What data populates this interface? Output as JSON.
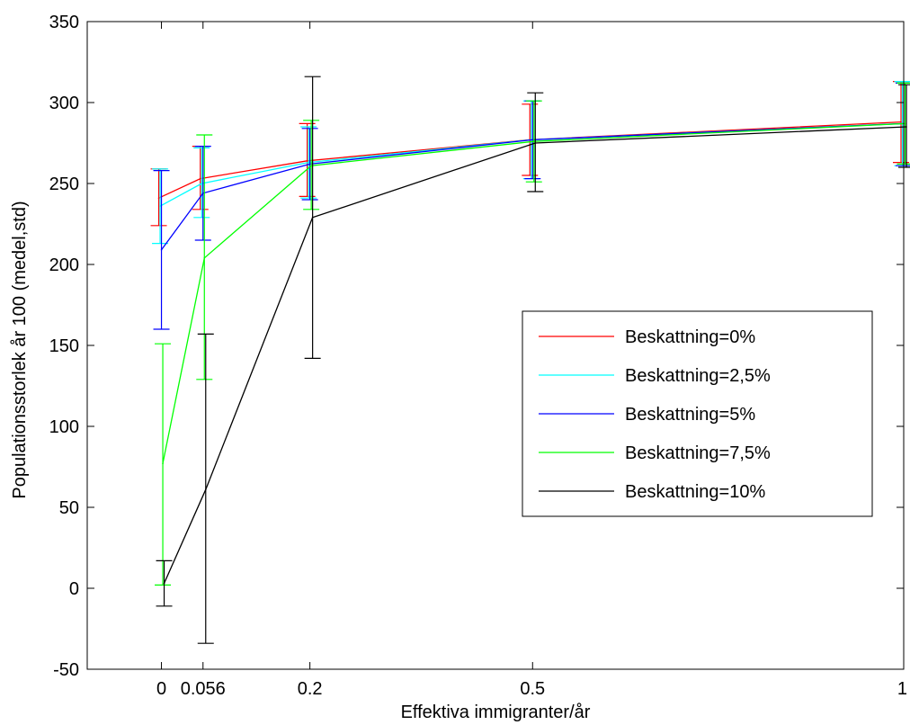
{
  "chart_data": {
    "type": "line",
    "title": "",
    "xlabel": "Effektiva immigranter/år",
    "ylabel": "Populationsstorlek år 100 (medel,std)",
    "xlim": [
      -0.1,
      1
    ],
    "ylim": [
      -50,
      350
    ],
    "x_ticks": [
      0,
      0.056,
      0.2,
      0.5,
      1
    ],
    "x_tick_labels": [
      "0",
      "0.056",
      "0.2",
      "0.5",
      "1"
    ],
    "y_ticks": [
      -50,
      0,
      50,
      100,
      150,
      200,
      250,
      300,
      350
    ],
    "y_tick_labels": [
      "-50",
      "0",
      "50",
      "100",
      "150",
      "200",
      "250",
      "300",
      "350"
    ],
    "grid": false,
    "legend_position": "middle-right",
    "series": [
      {
        "name": "Beskattning=0%",
        "color": "#ff0000",
        "x": [
          0,
          0.056,
          0.2,
          0.5,
          1
        ],
        "y": [
          241,
          253,
          264,
          277,
          288
        ],
        "err_low": [
          224,
          234,
          242,
          255,
          263
        ],
        "err_high": [
          259,
          273,
          287,
          299,
          313
        ]
      },
      {
        "name": "Beskattning=2,5%",
        "color": "#00ffff",
        "x": [
          0,
          0.056,
          0.2,
          0.5,
          1
        ],
        "y": [
          236,
          250,
          263,
          277,
          287
        ],
        "err_low": [
          213,
          229,
          241,
          253,
          261
        ],
        "err_high": [
          259,
          272,
          285,
          301,
          313
        ]
      },
      {
        "name": "Beskattning=5%",
        "color": "#0000ff",
        "x": [
          0,
          0.056,
          0.2,
          0.5,
          1
        ],
        "y": [
          209,
          244,
          262,
          277,
          287
        ],
        "err_low": [
          160,
          215,
          240,
          253,
          261
        ],
        "err_high": [
          258,
          273,
          284,
          301,
          312
        ]
      },
      {
        "name": "Beskattning=7,5%",
        "color": "#00ff00",
        "x": [
          0,
          0.056,
          0.2,
          0.5,
          1
        ],
        "y": [
          77,
          204,
          261,
          276,
          287
        ],
        "err_low": [
          2,
          129,
          234,
          251,
          262
        ],
        "err_high": [
          151,
          280,
          289,
          301,
          312
        ]
      },
      {
        "name": "Beskattning=10%",
        "color": "#000000",
        "x": [
          0,
          0.056,
          0.2,
          0.5,
          1
        ],
        "y": [
          3,
          61,
          229,
          275,
          285
        ],
        "err_low": [
          -11,
          -34,
          142,
          245,
          260
        ],
        "err_high": [
          17,
          157,
          316,
          306,
          311
        ]
      }
    ]
  }
}
